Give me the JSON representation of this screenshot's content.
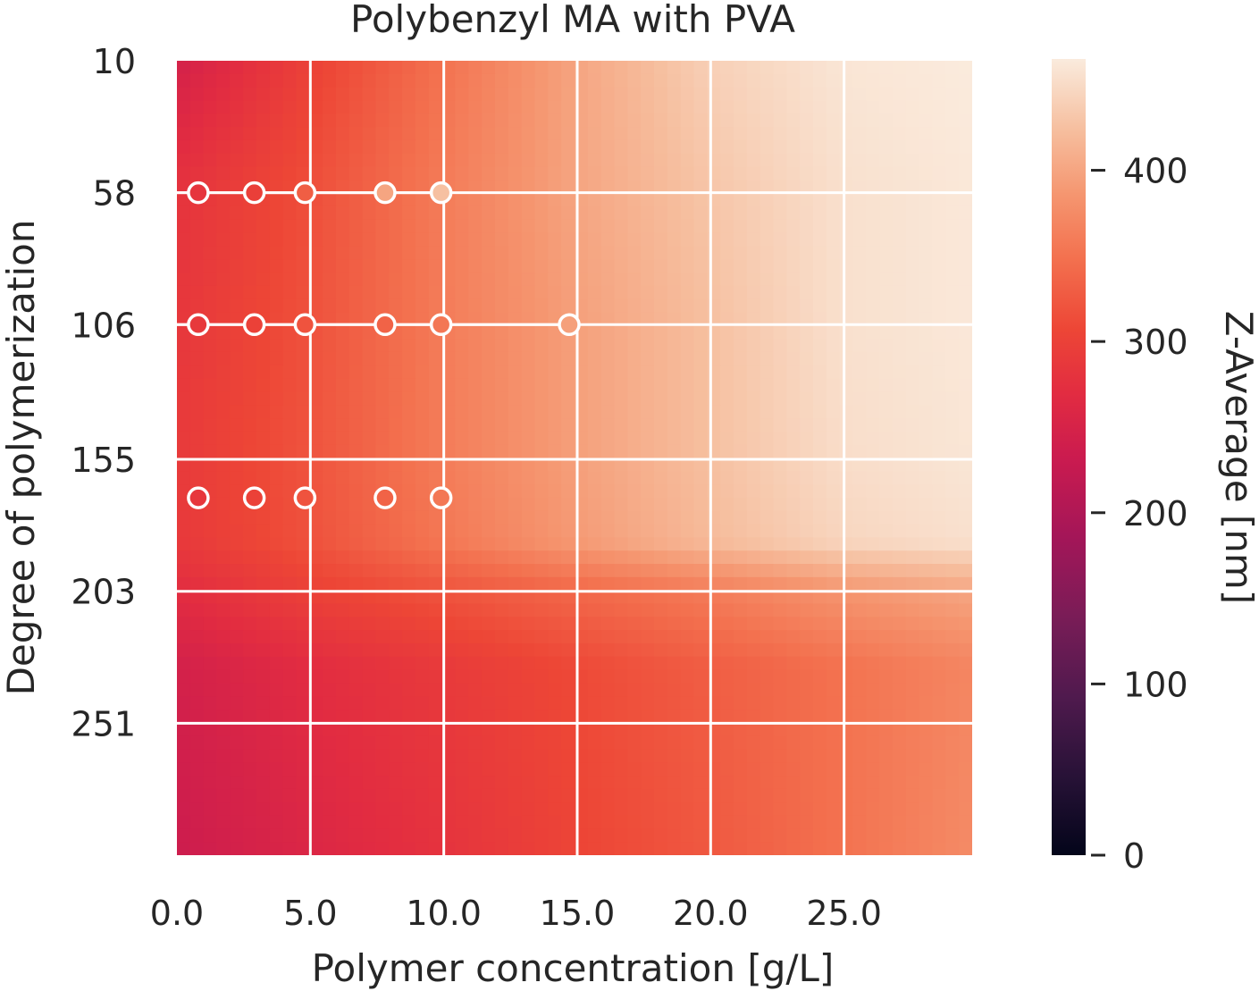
{
  "chart_data": {
    "type": "heatmap",
    "title": "Polybenzyl MA with PVA",
    "xlabel": "Polymer concentration [g/L]",
    "ylabel": "Degree of polymerization",
    "colorbar_label": "Z-Average [nm]",
    "xlim": [
      0,
      29.8
    ],
    "ylim": [
      10,
      299
    ],
    "x_ticks": [
      "0.0",
      "5.0",
      "10.0",
      "15.0",
      "20.0",
      "25.0"
    ],
    "y_ticks": [
      "10",
      "58",
      "106",
      "155",
      "203",
      "251"
    ],
    "colorbar": {
      "range": [
        0,
        465
      ],
      "ticks": [
        "0",
        "100",
        "200",
        "300",
        "400"
      ],
      "colormap": "rocket"
    },
    "grid": true,
    "z_grid": {
      "x": [
        0,
        5,
        10,
        15,
        20,
        25,
        29.8
      ],
      "rows": [
        {
          "dp": 10,
          "z": [
            245,
            300,
            350,
            400,
            440,
            460,
            465
          ]
        },
        {
          "dp": 58,
          "z": [
            280,
            315,
            360,
            400,
            430,
            455,
            462
          ]
        },
        {
          "dp": 106,
          "z": [
            285,
            318,
            360,
            395,
            425,
            455,
            462
          ]
        },
        {
          "dp": 155,
          "z": [
            290,
            320,
            360,
            395,
            425,
            452,
            460
          ]
        },
        {
          "dp": 185,
          "z": [
            288,
            318,
            355,
            390,
            420,
            445,
            455
          ]
        },
        {
          "dp": 203,
          "z": [
            270,
            300,
            320,
            340,
            360,
            385,
            400
          ]
        },
        {
          "dp": 230,
          "z": [
            245,
            270,
            290,
            310,
            330,
            350,
            370
          ]
        },
        {
          "dp": 299,
          "z": [
            235,
            258,
            280,
            305,
            325,
            350,
            375
          ]
        }
      ]
    },
    "series": [
      {
        "points": [
          {
            "x": 0.8,
            "y": 58,
            "z": 282
          },
          {
            "x": 2.9,
            "y": 58,
            "z": 297
          },
          {
            "x": 4.8,
            "y": 58,
            "z": 330
          },
          {
            "x": 7.8,
            "y": 58,
            "z": 400
          },
          {
            "x": 9.9,
            "y": 58,
            "z": 425
          },
          {
            "x": 0.8,
            "y": 106,
            "z": 288
          },
          {
            "x": 2.9,
            "y": 106,
            "z": 300
          },
          {
            "x": 4.8,
            "y": 106,
            "z": 320
          },
          {
            "x": 7.8,
            "y": 106,
            "z": 335
          },
          {
            "x": 9.9,
            "y": 106,
            "z": 355
          },
          {
            "x": 14.7,
            "y": 106,
            "z": 395
          },
          {
            "x": 0.8,
            "y": 169,
            "z": 285
          },
          {
            "x": 2.9,
            "y": 169,
            "z": 300
          },
          {
            "x": 4.8,
            "y": 169,
            "z": 320
          },
          {
            "x": 7.8,
            "y": 169,
            "z": 335
          },
          {
            "x": 9.9,
            "y": 169,
            "z": 355
          }
        ]
      }
    ]
  }
}
